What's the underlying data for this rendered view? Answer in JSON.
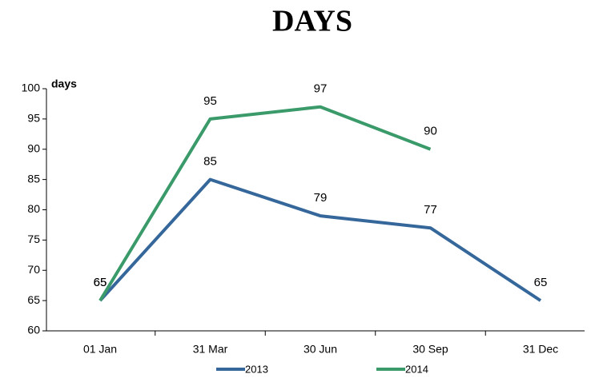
{
  "chart_data": {
    "type": "line",
    "title": "DAYS",
    "ylabel": "days",
    "categories": [
      "01 Jan",
      "31 Mar",
      "30 Jun",
      "30 Sep",
      "31 Dec"
    ],
    "series": [
      {
        "name": "2013",
        "color": "#35679a",
        "values": [
          65,
          85,
          79,
          77,
          65
        ]
      },
      {
        "name": "2014",
        "color": "#3a9a6a",
        "values": [
          65,
          95,
          97,
          90,
          null
        ]
      }
    ],
    "ylim": [
      60,
      100
    ],
    "yticks": [
      60,
      65,
      70,
      75,
      80,
      85,
      90,
      95,
      100
    ],
    "grid": false,
    "legend": "bottom"
  }
}
